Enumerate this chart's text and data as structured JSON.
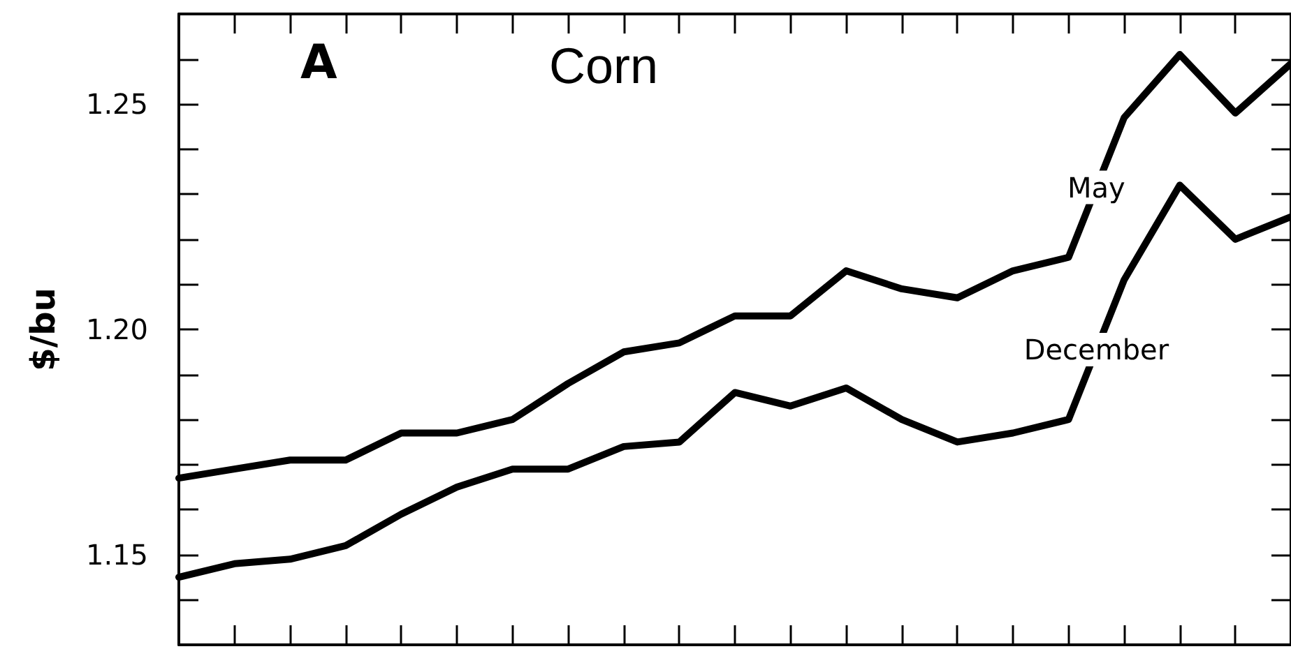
{
  "chart_data": {
    "type": "line",
    "title": "Corn",
    "ylabel": "$/bu",
    "annotations": [
      "A"
    ],
    "categories": [
      null,
      null,
      null,
      null,
      null,
      null,
      null,
      null,
      null,
      null,
      null,
      null,
      null,
      null,
      null,
      null,
      null,
      null,
      null,
      null,
      null
    ],
    "series": [
      {
        "name": "May",
        "color": "#000000",
        "values": [
          1.167,
          1.169,
          1.171,
          1.171,
          1.177,
          1.177,
          1.18,
          1.188,
          1.195,
          1.197,
          1.203,
          1.203,
          1.213,
          1.209,
          1.207,
          1.213,
          1.216,
          1.247,
          1.261,
          1.248,
          1.259
        ]
      },
      {
        "name": "December",
        "color": "#000000",
        "values": [
          1.145,
          1.148,
          1.149,
          1.152,
          1.159,
          1.165,
          1.169,
          1.169,
          1.174,
          1.175,
          1.186,
          1.183,
          1.187,
          1.18,
          1.175,
          1.177,
          1.18,
          1.211,
          1.232,
          1.22,
          1.225
        ]
      }
    ],
    "ylim": [
      1.13,
      1.27
    ],
    "yticks": [
      {
        "value": 1.13,
        "label": null
      },
      {
        "value": 1.14,
        "label": null
      },
      1.15,
      {
        "value": 1.16,
        "label": null
      },
      {
        "value": 1.17,
        "label": null
      },
      {
        "value": 1.18,
        "label": null
      },
      {
        "value": 1.19,
        "label": null
      },
      {
        "value": 1.2,
        "label": "1.20"
      },
      {
        "value": 1.21,
        "label": null
      },
      {
        "value": 1.22,
        "label": null
      },
      {
        "value": 1.23,
        "label": null
      },
      {
        "value": 1.24,
        "label": null
      },
      1.25,
      {
        "value": 1.26,
        "label": null
      },
      {
        "value": 1.27,
        "label": null
      }
    ],
    "tick_labels": "y",
    "grid": false,
    "legend": false,
    "marker": "none",
    "line_style": "solid"
  }
}
